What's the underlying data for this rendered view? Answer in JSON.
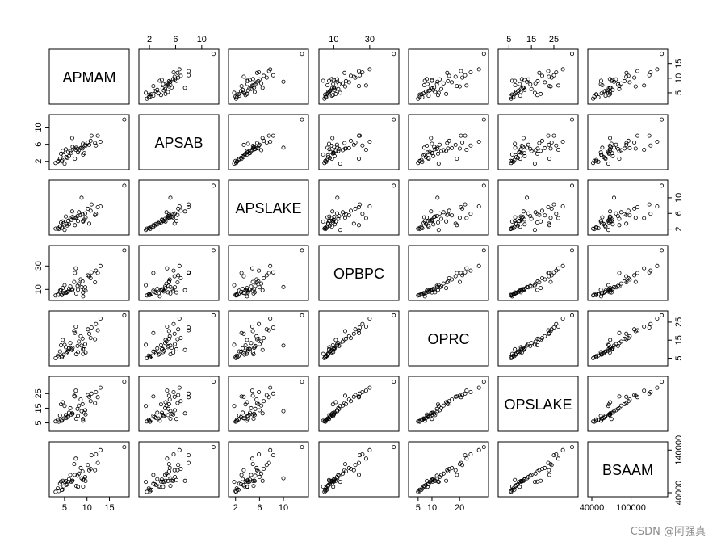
{
  "chart_data": {
    "type": "scatter",
    "matrix": "pairs",
    "variables": [
      "APMAM",
      "APSAB",
      "APSLAKE",
      "OPBPC",
      "OPRC",
      "OPSLAKE",
      "BSAAM"
    ],
    "axes": {
      "APMAM": {
        "range": [
          2.5,
          18.5
        ],
        "ticks": [
          5,
          10,
          15
        ],
        "tick_labels": [
          "5",
          "10",
          "15"
        ]
      },
      "APSAB": {
        "range": [
          1.0,
          12.0
        ],
        "ticks": [
          2,
          6,
          10
        ],
        "tick_labels": [
          "2",
          "6",
          "10"
        ]
      },
      "APSLAKE": {
        "range": [
          1.5,
          13.5
        ],
        "ticks": [
          2,
          6,
          10
        ],
        "tick_labels": [
          "2",
          "6",
          "10"
        ]
      },
      "OPBPC": {
        "range": [
          4.0,
          44.0
        ],
        "ticks": [
          10,
          30
        ],
        "tick_labels": [
          "10",
          "30"
        ]
      },
      "OPRC": {
        "range": [
          3.0,
          29.0
        ],
        "ticks": [
          5,
          10,
          20
        ],
        "tick_labels": [
          "5",
          "10",
          "20"
        ]
      },
      "OPSLAKE": {
        "range": [
          2.0,
          34.0
        ],
        "ticks": [
          5,
          15,
          25
        ],
        "tick_labels": [
          "5",
          "15",
          "25"
        ]
      },
      "BSAAM": {
        "range": [
          40000,
          150000
        ],
        "ticks": [
          40000,
          100000
        ],
        "tick_labels": [
          "40000",
          "100000"
        ]
      }
    },
    "axes_right": {
      "APMAM": {
        "ticks": [
          5,
          10,
          15
        ],
        "tick_labels": [
          "5",
          "10",
          "15"
        ]
      },
      "APSLAKE": {
        "ticks": [
          2,
          6,
          10
        ],
        "tick_labels": [
          "2",
          "6",
          "10"
        ]
      },
      "OPRC": {
        "ticks": [
          5,
          15,
          25
        ],
        "tick_labels": [
          "5",
          "15",
          "25"
        ]
      },
      "BSAAM": {
        "ticks": [
          40000,
          140000
        ],
        "tick_labels": [
          "40000",
          "140000"
        ]
      }
    },
    "axes_top": {
      "APSAB": {
        "ticks": [
          2,
          6,
          10
        ],
        "tick_labels": [
          "2",
          "6",
          "10"
        ]
      },
      "OPBPC": {
        "ticks": [
          10,
          30
        ],
        "tick_labels": [
          "10",
          "30"
        ]
      },
      "OPSLAKE": {
        "ticks": [
          5,
          15,
          25
        ],
        "tick_labels": [
          "5",
          "15",
          "25"
        ]
      }
    },
    "observations": [
      {
        "APMAM": 9.13,
        "APSAB": 3.58,
        "APSLAKE": 3.91,
        "OPBPC": 4.1,
        "OPRC": 7.43,
        "OPSLAKE": 6.47,
        "BSAAM": 54235
      },
      {
        "APMAM": 5.28,
        "APSAB": 4.82,
        "APSLAKE": 5.2,
        "OPBPC": 7.55,
        "OPRC": 11.11,
        "OPSLAKE": 10.31,
        "BSAAM": 67567
      },
      {
        "APMAM": 4.2,
        "APSAB": 3.77,
        "APSLAKE": 3.67,
        "OPBPC": 9.52,
        "OPRC": 12.2,
        "OPSLAKE": 17.64,
        "BSAAM": 66161
      },
      {
        "APMAM": 4.6,
        "APSAB": 4.46,
        "APSLAKE": 3.93,
        "OPBPC": 11.14,
        "OPRC": 15.15,
        "OPSLAKE": 19.11,
        "BSAAM": 68094
      },
      {
        "APMAM": 7.15,
        "APSAB": 4.99,
        "APSLAKE": 4.88,
        "OPBPC": 16.34,
        "OPRC": 20.05,
        "OPSLAKE": 23.57,
        "BSAAM": 107080
      },
      {
        "APMAM": 9.7,
        "APSAB": 5.65,
        "APSLAKE": 4.91,
        "OPBPC": 8.88,
        "OPRC": 8.15,
        "OPSLAKE": 10.73,
        "BSAAM": 67594
      },
      {
        "APMAM": 5.02,
        "APSAB": 1.45,
        "APSLAKE": 1.77,
        "OPBPC": 13.57,
        "OPRC": 12.45,
        "OPSLAKE": 16.53,
        "BSAAM": 65356
      },
      {
        "APMAM": 6.7,
        "APSAB": 7.44,
        "APSLAKE": 6.51,
        "OPBPC": 9.28,
        "OPRC": 9.65,
        "OPSLAKE": 11.48,
        "BSAAM": 67909
      },
      {
        "APMAM": 10.5,
        "APSAB": 5.85,
        "APSLAKE": 3.38,
        "OPBPC": 21.2,
        "OPRC": 18.55,
        "OPSLAKE": 22.78,
        "BSAAM": 92715
      },
      {
        "APMAM": 9.1,
        "APSAB": 6.13,
        "APSLAKE": 4.08,
        "OPBPC": 7.38,
        "OPRC": 9.98,
        "OPSLAKE": 7.64,
        "BSAAM": 70024
      },
      {
        "APMAM": 8.0,
        "APSAB": 4.08,
        "APSLAKE": 4.0,
        "OPBPC": 9.7,
        "OPRC": 8.38,
        "OPSLAKE": 9.8,
        "BSAAM": 53700
      },
      {
        "APMAM": 4.5,
        "APSAB": 2.3,
        "APSLAKE": 2.5,
        "OPBPC": 6.05,
        "OPRC": 6.2,
        "OPSLAKE": 7.4,
        "BSAAM": 46780
      },
      {
        "APMAM": 3.7,
        "APSAB": 2.1,
        "APSLAKE": 2.0,
        "OPBPC": 5.4,
        "OPRC": 5.6,
        "OPSLAKE": 5.8,
        "BSAAM": 43800
      },
      {
        "APMAM": 7.5,
        "APSAB": 4.7,
        "APSLAKE": 4.8,
        "OPBPC": 28.0,
        "OPRC": 22.5,
        "OPSLAKE": 27.0,
        "BSAAM": 120000
      },
      {
        "APMAM": 6.0,
        "APSAB": 3.2,
        "APSLAKE": 3.2,
        "OPBPC": 10.5,
        "OPRC": 10.5,
        "OPSLAKE": 12.0,
        "BSAAM": 72000
      },
      {
        "APMAM": 5.4,
        "APSAB": 3.0,
        "APSLAKE": 3.3,
        "OPBPC": 7.0,
        "OPRC": 7.8,
        "OPSLAKE": 8.3,
        "BSAAM": 58000
      },
      {
        "APMAM": 3.0,
        "APSAB": 1.6,
        "APSLAKE": 2.1,
        "OPBPC": 4.8,
        "OPRC": 5.0,
        "OPSLAKE": 6.0,
        "BSAAM": 42000
      },
      {
        "APMAM": 10.2,
        "APSAB": 6.4,
        "APSLAKE": 7.2,
        "OPBPC": 22.0,
        "OPRC": 21.0,
        "OPSLAKE": 24.0,
        "BSAAM": 105000
      },
      {
        "APMAM": 8.6,
        "APSAB": 5.1,
        "APSLAKE": 5.5,
        "OPBPC": 18.5,
        "OPRC": 17.2,
        "OPSLAKE": 21.0,
        "BSAAM": 98000
      },
      {
        "APMAM": 6.3,
        "APSAB": 4.4,
        "APSLAKE": 4.6,
        "OPBPC": 12.5,
        "OPRC": 13.4,
        "OPSLAKE": 15.0,
        "BSAAM": 82000
      },
      {
        "APMAM": 11.8,
        "APSAB": 6.3,
        "APSLAKE": 5.6,
        "OPBPC": 16.0,
        "OPRC": 15.5,
        "OPSLAKE": 18.5,
        "BSAAM": 93000
      },
      {
        "APMAM": 4.0,
        "APSAB": 2.6,
        "APSLAKE": 2.6,
        "OPBPC": 9.0,
        "OPRC": 8.8,
        "OPSLAKE": 10.0,
        "BSAAM": 61000
      },
      {
        "APMAM": 7.6,
        "APSAB": 5.2,
        "APSLAKE": 5.0,
        "OPBPC": 6.5,
        "OPRC": 7.2,
        "OPSLAKE": 7.8,
        "BSAAM": 56000
      },
      {
        "APMAM": 12.4,
        "APSAB": 8.0,
        "APSLAKE": 7.6,
        "OPBPC": 24.0,
        "OPRC": 20.5,
        "OPSLAKE": 22.5,
        "BSAAM": 110000
      },
      {
        "APMAM": 5.8,
        "APSAB": 4.2,
        "APSLAKE": 4.1,
        "OPBPC": 8.2,
        "OPRC": 9.2,
        "OPSLAKE": 9.5,
        "BSAAM": 65000
      },
      {
        "APMAM": 9.6,
        "APSAB": 5.9,
        "APSLAKE": 6.0,
        "OPBPC": 11.8,
        "OPRC": 12.8,
        "OPSLAKE": 13.6,
        "BSAAM": 77000
      },
      {
        "APMAM": 3.5,
        "APSAB": 1.9,
        "APSLAKE": 2.2,
        "OPBPC": 5.8,
        "OPRC": 6.5,
        "OPSLAKE": 7.0,
        "BSAAM": 50000
      },
      {
        "APMAM": 8.2,
        "APSAB": 4.6,
        "APSLAKE": 6.3,
        "OPBPC": 15.0,
        "OPRC": 14.2,
        "OPSLAKE": 16.8,
        "BSAAM": 85000
      },
      {
        "APMAM": 6.8,
        "APSAB": 5.4,
        "APSLAKE": 5.1,
        "OPBPC": 10.2,
        "OPRC": 10.8,
        "OPSLAKE": 11.2,
        "BSAAM": 68500
      },
      {
        "APMAM": 10.8,
        "APSAB": 6.8,
        "APSLAKE": 6.7,
        "OPBPC": 19.5,
        "OPRC": 16.2,
        "OPSLAKE": 19.8,
        "BSAAM": 96000
      },
      {
        "APMAM": 4.8,
        "APSAB": 3.4,
        "APSLAKE": 3.5,
        "OPBPC": 6.8,
        "OPRC": 7.0,
        "OPSLAKE": 8.0,
        "BSAAM": 55000
      },
      {
        "APMAM": 7.9,
        "APSAB": 4.9,
        "APSLAKE": 5.3,
        "OPBPC": 13.0,
        "OPRC": 11.8,
        "OPSLAKE": 14.5,
        "BSAAM": 80000
      },
      {
        "APMAM": 9.4,
        "APSAB": 3.9,
        "APSLAKE": 4.4,
        "OPBPC": 9.9,
        "OPRC": 10.0,
        "OPSLAKE": 11.9,
        "BSAAM": 71000
      },
      {
        "APMAM": 5.6,
        "APSAB": 2.8,
        "APSLAKE": 2.9,
        "OPBPC": 7.8,
        "OPRC": 8.6,
        "OPSLAKE": 9.0,
        "BSAAM": 60000
      },
      {
        "APMAM": 12.0,
        "APSAB": 5.7,
        "APSLAKE": 5.9,
        "OPBPC": 26.0,
        "OPRC": 24.0,
        "OPSLAKE": 26.0,
        "BSAAM": 130000
      },
      {
        "APMAM": 11.0,
        "APSAB": 8.0,
        "APSLAKE": 8.3,
        "OPBPC": 24.5,
        "OPRC": 22.0,
        "OPSLAKE": 25.0,
        "BSAAM": 128000
      },
      {
        "APMAM": 8.8,
        "APSAB": 5.2,
        "APSLAKE": 10.0,
        "OPBPC": 12.0,
        "OPRC": 12.0,
        "OPSLAKE": 13.0,
        "BSAAM": 74000
      },
      {
        "APMAM": 6.5,
        "APSAB": 4.0,
        "APSLAKE": 4.3,
        "OPBPC": 10.0,
        "OPRC": 10.2,
        "OPSLAKE": 10.6,
        "BSAAM": 66000
      },
      {
        "APMAM": 4.4,
        "APSAB": 2.0,
        "APSLAKE": 2.3,
        "OPBPC": 5.2,
        "OPRC": 5.6,
        "OPSLAKE": 6.4,
        "BSAAM": 47000
      },
      {
        "APMAM": 13.0,
        "APSAB": 6.6,
        "APSLAKE": 7.8,
        "OPBPC": 30.0,
        "OPRC": 27.0,
        "OPSLAKE": 29.0,
        "BSAAM": 140000
      },
      {
        "APMAM": 9.0,
        "APSAB": 5.0,
        "APSLAKE": 5.8,
        "OPBPC": 16.8,
        "OPRC": 15.8,
        "OPSLAKE": 17.8,
        "BSAAM": 90000
      },
      {
        "APMAM": 18.3,
        "APSAB": 11.8,
        "APSLAKE": 13.1,
        "OPBPC": 43.4,
        "OPRC": 28.8,
        "OPSLAKE": 33.1,
        "BSAAM": 147000
      },
      {
        "APMAM": 7.3,
        "APSAB": 2.6,
        "APSLAKE": 3.0,
        "OPBPC": 24.0,
        "OPRC": 19.0,
        "OPSLAKE": 23.0,
        "BSAAM": 82000
      }
    ]
  },
  "watermark": "CSDN @阿强真"
}
